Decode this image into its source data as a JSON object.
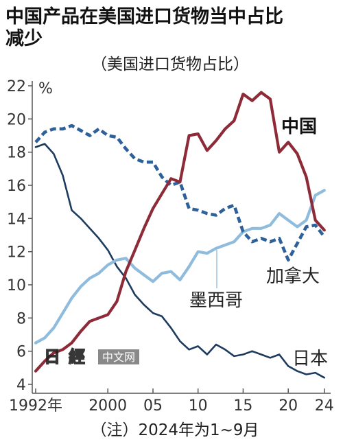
{
  "chart_data": {
    "type": "line",
    "title_lines": [
      "中国产品在美国进口货物当中占比",
      "减少"
    ],
    "subtitle": "（美国进口货物占比）",
    "xlabel": "",
    "ylabel": "%",
    "xlim": [
      1992,
      2024
    ],
    "ylim": [
      4,
      22
    ],
    "grid": false,
    "yticks": [
      4,
      6,
      8,
      10,
      12,
      14,
      16,
      18,
      20,
      22
    ],
    "xticks": [
      {
        "value": 1992,
        "label": "1992年"
      },
      {
        "value": 2000,
        "label": "2000"
      },
      {
        "value": 2005,
        "label": "05"
      },
      {
        "value": 2010,
        "label": "10"
      },
      {
        "value": 2015,
        "label": "15"
      },
      {
        "value": 2020,
        "label": "20"
      },
      {
        "value": 2024,
        "label": "24"
      }
    ],
    "x": [
      1992,
      1993,
      1994,
      1995,
      1996,
      1997,
      1998,
      1999,
      2000,
      2001,
      2002,
      2003,
      2004,
      2005,
      2006,
      2007,
      2008,
      2009,
      2010,
      2011,
      2012,
      2013,
      2014,
      2015,
      2016,
      2017,
      2018,
      2019,
      2020,
      2021,
      2022,
      2023,
      2024
    ],
    "series": [
      {
        "name": "中国",
        "color": "#8e2b38",
        "dashed": false,
        "values": [
          4.8,
          5.4,
          5.9,
          6.1,
          6.5,
          7.2,
          7.8,
          8.0,
          8.2,
          9.0,
          10.8,
          12.1,
          13.4,
          14.6,
          15.5,
          16.4,
          16.2,
          19.0,
          19.1,
          18.1,
          18.7,
          19.4,
          19.9,
          21.5,
          21.1,
          21.6,
          21.2,
          18.0,
          18.6,
          17.9,
          16.5,
          13.9,
          13.3
        ]
      },
      {
        "name": "墨西哥",
        "color": "#8fbcdc",
        "dashed": false,
        "values": [
          6.5,
          6.8,
          7.4,
          8.3,
          9.2,
          9.9,
          10.4,
          10.7,
          11.2,
          11.5,
          11.6,
          11.0,
          10.6,
          10.2,
          10.7,
          10.8,
          10.3,
          11.1,
          12.0,
          11.9,
          12.2,
          12.4,
          12.6,
          13.2,
          13.4,
          13.4,
          13.6,
          14.3,
          13.9,
          13.5,
          13.9,
          15.4,
          15.7
        ]
      },
      {
        "name": "加拿大",
        "color": "#2e609a",
        "dashed": true,
        "values": [
          18.6,
          19.2,
          19.4,
          19.4,
          19.6,
          19.3,
          19.0,
          19.4,
          19.0,
          18.9,
          18.2,
          17.6,
          17.4,
          17.4,
          16.5,
          16.0,
          16.2,
          14.6,
          14.5,
          14.3,
          14.2,
          14.6,
          14.8,
          13.2,
          12.6,
          12.8,
          12.6,
          12.8,
          11.5,
          12.5,
          13.5,
          13.6,
          12.9
        ]
      },
      {
        "name": "日本",
        "color": "#1d3b5e",
        "dashed": false,
        "values": [
          18.3,
          18.5,
          17.9,
          16.6,
          14.5,
          14.0,
          13.4,
          12.8,
          12.1,
          11.1,
          10.4,
          9.4,
          8.8,
          8.3,
          8.1,
          7.4,
          6.6,
          6.1,
          6.3,
          5.8,
          6.4,
          6.1,
          5.7,
          5.8,
          6.0,
          5.8,
          5.6,
          5.8,
          5.1,
          4.8,
          4.6,
          4.7,
          4.4
        ]
      }
    ],
    "note": "（注）2024年为1~9月"
  },
  "logo": {
    "mark": "日經",
    "text": "中文网"
  }
}
